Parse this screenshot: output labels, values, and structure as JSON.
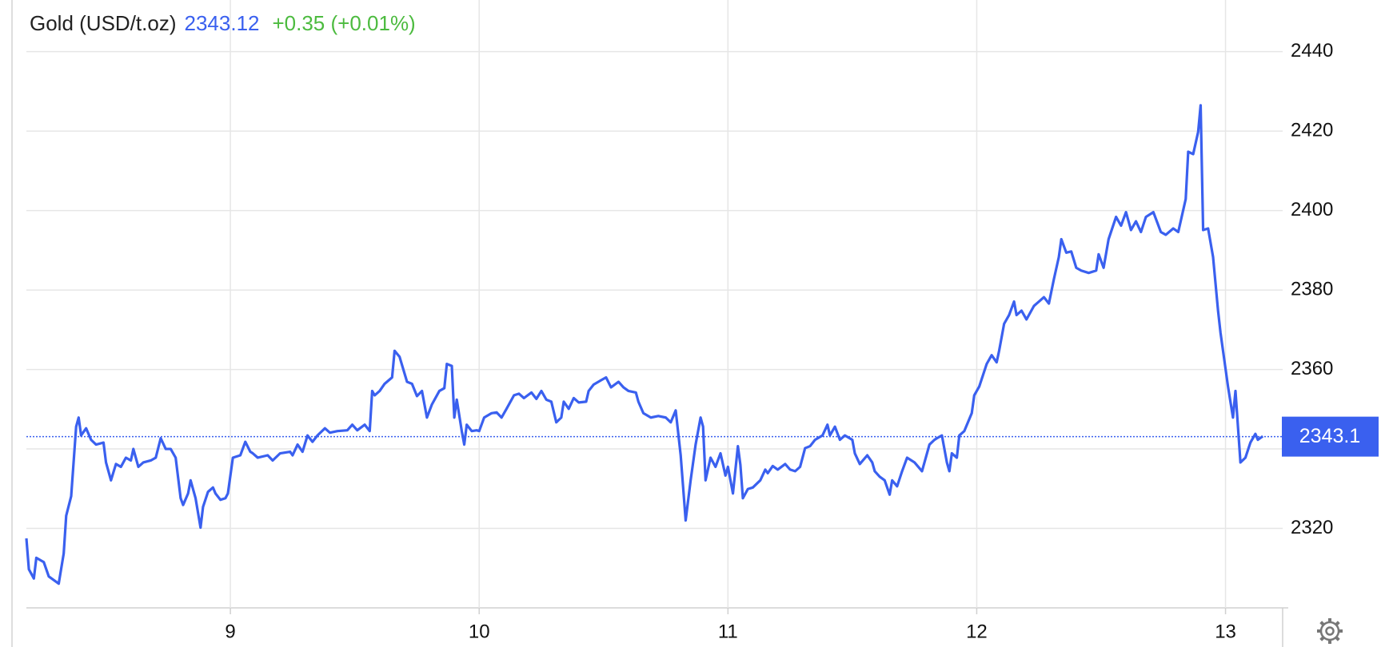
{
  "chart_data": {
    "type": "line",
    "price": 2343.12,
    "change": "+0.35 (+0.01%)",
    "last_price": 2343.1,
    "x": [
      8.18,
      8.19,
      8.21,
      8.22,
      8.25,
      8.27,
      8.31,
      8.33,
      8.34,
      8.36,
      8.38,
      8.39,
      8.4,
      8.42,
      8.44,
      8.46,
      8.49,
      8.5,
      8.52,
      8.54,
      8.56,
      8.58,
      8.6,
      8.61,
      8.63,
      8.65,
      8.68,
      8.7,
      8.72,
      8.74,
      8.76,
      8.78,
      8.8,
      8.81,
      8.83,
      8.84,
      8.86,
      8.88,
      8.89,
      8.91,
      8.93,
      8.94,
      8.96,
      8.98,
      8.99,
      9.01,
      9.04,
      9.06,
      9.08,
      9.09,
      9.11,
      9.15,
      9.17,
      9.2,
      9.24,
      9.25,
      9.27,
      9.29,
      9.31,
      9.33,
      9.35,
      9.38,
      9.4,
      9.43,
      9.47,
      9.49,
      9.51,
      9.54,
      9.56,
      9.57,
      9.58,
      9.6,
      9.62,
      9.65,
      9.66,
      9.68,
      9.71,
      9.73,
      9.75,
      9.77,
      9.79,
      9.81,
      9.84,
      9.86,
      9.87,
      9.89,
      9.9,
      9.91,
      9.93,
      9.94,
      9.95,
      9.97,
      9.99,
      10.0,
      10.02,
      10.05,
      10.07,
      10.09,
      10.11,
      10.14,
      10.16,
      10.18,
      10.21,
      10.23,
      10.25,
      10.27,
      10.29,
      10.31,
      10.33,
      10.34,
      10.36,
      10.38,
      10.4,
      10.43,
      10.44,
      10.46,
      10.49,
      10.51,
      10.53,
      10.56,
      10.58,
      10.6,
      10.63,
      10.64,
      10.66,
      10.69,
      10.72,
      10.75,
      10.77,
      10.79,
      10.81,
      10.83,
      10.85,
      10.87,
      10.89,
      10.9,
      10.91,
      10.93,
      10.95,
      10.97,
      10.99,
      11.0,
      11.02,
      11.04,
      11.05,
      11.06,
      11.08,
      11.1,
      11.13,
      11.15,
      11.16,
      11.18,
      11.2,
      11.23,
      11.25,
      11.27,
      11.29,
      11.31,
      11.33,
      11.35,
      11.38,
      11.4,
      11.41,
      11.43,
      11.45,
      11.47,
      11.5,
      11.51,
      11.53,
      11.56,
      11.58,
      11.59,
      11.61,
      11.63,
      11.65,
      11.66,
      11.68,
      11.7,
      11.72,
      11.75,
      11.78,
      11.81,
      11.83,
      11.84,
      11.86,
      11.88,
      11.89,
      11.9,
      11.92,
      11.93,
      11.95,
      11.98,
      11.99,
      12.01,
      12.04,
      12.06,
      12.08,
      12.09,
      12.11,
      12.13,
      12.15,
      12.16,
      12.18,
      12.2,
      12.23,
      12.25,
      12.27,
      12.29,
      12.31,
      12.33,
      12.34,
      12.36,
      12.38,
      12.4,
      12.42,
      12.45,
      12.48,
      12.49,
      12.51,
      12.53,
      12.56,
      12.58,
      12.6,
      12.62,
      12.64,
      12.66,
      12.68,
      12.71,
      12.74,
      12.76,
      12.79,
      12.81,
      12.84,
      12.85,
      12.87,
      12.89,
      12.9,
      12.91,
      12.93,
      12.95,
      12.97,
      12.98,
      13.0,
      13.01,
      13.03,
      13.04,
      13.05,
      13.06,
      13.08,
      13.1,
      13.12,
      13.13,
      13.15
    ],
    "series": [
      {
        "name": "Gold (USD/t.oz)",
        "color": "#3a60ef",
        "values": [
          2317.5,
          2309.7,
          2307.4,
          2312.6,
          2311.5,
          2307.9,
          2306.1,
          2313.7,
          2323.2,
          2328.1,
          2345.6,
          2347.9,
          2343.4,
          2345.2,
          2342.3,
          2341.1,
          2341.6,
          2336.6,
          2332.1,
          2336.2,
          2335.5,
          2337.8,
          2337.1,
          2340.0,
          2335.5,
          2336.6,
          2337.1,
          2337.8,
          2342.7,
          2340.0,
          2340.0,
          2337.8,
          2327.6,
          2325.9,
          2328.8,
          2332.1,
          2327.6,
          2320.2,
          2325.4,
          2329.2,
          2330.3,
          2328.8,
          2327.2,
          2327.6,
          2328.8,
          2337.8,
          2338.4,
          2341.8,
          2339.3,
          2338.9,
          2337.8,
          2338.4,
          2337.1,
          2338.9,
          2339.3,
          2338.4,
          2341.1,
          2339.3,
          2343.4,
          2341.8,
          2343.4,
          2345.2,
          2344.1,
          2344.5,
          2344.7,
          2346.1,
          2344.7,
          2346.1,
          2344.5,
          2354.6,
          2353.5,
          2354.6,
          2356.4,
          2358.0,
          2364.7,
          2363.2,
          2356.9,
          2356.4,
          2353.3,
          2354.6,
          2347.9,
          2351.2,
          2354.6,
          2355.3,
          2361.4,
          2360.9,
          2347.9,
          2352.4,
          2344.5,
          2341.1,
          2346.1,
          2344.5,
          2344.7,
          2344.5,
          2347.9,
          2349.0,
          2349.2,
          2347.9,
          2350.1,
          2353.5,
          2353.9,
          2352.8,
          2354.2,
          2352.6,
          2354.6,
          2352.4,
          2351.9,
          2346.7,
          2347.9,
          2351.9,
          2350.1,
          2352.8,
          2351.7,
          2351.9,
          2354.6,
          2356.2,
          2357.3,
          2358.0,
          2355.5,
          2356.9,
          2355.5,
          2354.6,
          2354.2,
          2351.9,
          2349.0,
          2347.9,
          2348.3,
          2347.9,
          2346.7,
          2349.7,
          2338.4,
          2322.0,
          2332.1,
          2341.1,
          2347.9,
          2345.6,
          2332.1,
          2337.8,
          2335.5,
          2338.9,
          2333.3,
          2335.5,
          2328.8,
          2340.7,
          2336.0,
          2327.6,
          2329.9,
          2330.3,
          2332.1,
          2334.8,
          2333.9,
          2335.7,
          2334.8,
          2336.2,
          2334.8,
          2334.4,
          2335.5,
          2340.2,
          2340.7,
          2342.3,
          2343.4,
          2346.1,
          2343.4,
          2345.6,
          2342.3,
          2343.4,
          2342.3,
          2338.9,
          2336.2,
          2338.4,
          2336.6,
          2334.4,
          2333.0,
          2332.1,
          2328.5,
          2332.1,
          2330.6,
          2334.4,
          2337.8,
          2336.6,
          2334.4,
          2341.1,
          2342.3,
          2342.7,
          2343.4,
          2336.6,
          2334.4,
          2338.9,
          2337.8,
          2343.4,
          2344.5,
          2349.0,
          2353.5,
          2355.7,
          2361.4,
          2363.6,
          2361.8,
          2364.7,
          2371.5,
          2373.7,
          2377.1,
          2373.7,
          2374.8,
          2372.6,
          2376.0,
          2377.1,
          2378.2,
          2376.6,
          2382.7,
          2388.3,
          2392.8,
          2389.4,
          2389.7,
          2385.6,
          2384.9,
          2384.3,
          2384.9,
          2389.0,
          2385.6,
          2392.8,
          2398.4,
          2396.2,
          2399.6,
          2395.1,
          2397.3,
          2394.6,
          2398.4,
          2399.6,
          2394.6,
          2393.9,
          2395.5,
          2394.6,
          2402.9,
          2414.8,
          2414.2,
          2419.8,
          2426.5,
          2395.1,
          2395.5,
          2388.3,
          2374.8,
          2369.2,
          2360.2,
          2355.7,
          2347.9,
          2354.6,
          2345.6,
          2336.6,
          2337.8,
          2341.6,
          2343.8,
          2342.3,
          2343.2
        ]
      }
    ],
    "xlim": [
      8.18,
      13.22
    ],
    "xticks": [
      9,
      10,
      11,
      12,
      13
    ],
    "ylim": [
      2300,
      2453
    ],
    "yticks": [
      2320,
      2340,
      2360,
      2380,
      2400,
      2420,
      2440
    ],
    "grid": true
  }
}
